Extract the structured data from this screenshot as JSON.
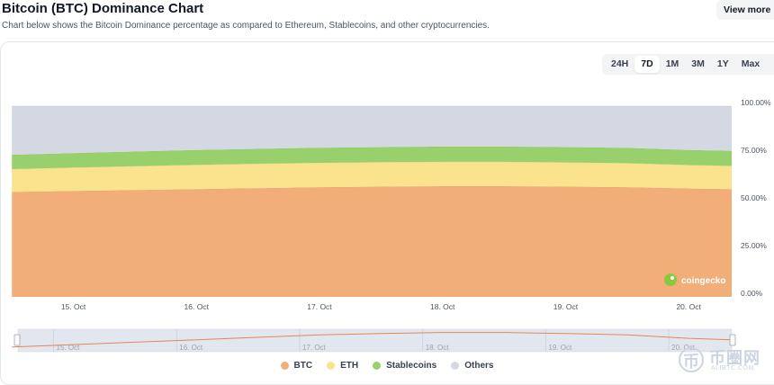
{
  "header": {
    "title": "Bitcoin (BTC) Dominance Chart",
    "subtitle": "Chart below shows the Bitcoin Dominance percentage as compared to Ethereum, Stablecoins, and other cryptocurrencies.",
    "view_more_label": "View more"
  },
  "range_tabs": [
    {
      "label": "24H",
      "active": false
    },
    {
      "label": "7D",
      "active": true
    },
    {
      "label": "1M",
      "active": false
    },
    {
      "label": "3M",
      "active": false
    },
    {
      "label": "1Y",
      "active": false
    },
    {
      "label": "Max",
      "active": false
    }
  ],
  "chart_data": {
    "type": "area",
    "stacked": true,
    "x": [
      "14.5 Oct",
      "15.0 Oct",
      "15.5 Oct",
      "16.0 Oct",
      "16.5 Oct",
      "17.0 Oct",
      "17.5 Oct",
      "18.0 Oct",
      "18.5 Oct",
      "19.0 Oct",
      "19.5 Oct",
      "20.0 Oct",
      "20.35 Oct"
    ],
    "x_days": [
      14.5,
      15.0,
      15.5,
      16.0,
      16.5,
      17.0,
      17.5,
      18.0,
      18.5,
      19.0,
      19.5,
      20.0,
      20.35
    ],
    "x_tick_labels": [
      "15. Oct",
      "16. Oct",
      "17. Oct",
      "18. Oct",
      "19. Oct",
      "20. Oct"
    ],
    "x_tick_days": [
      15,
      16,
      17,
      18,
      19,
      20
    ],
    "y_tick_labels": [
      "100.00%",
      "75.00%",
      "50.00%",
      "25.00%",
      "0.00%"
    ],
    "y_ticks": [
      100,
      75,
      50,
      25,
      0
    ],
    "ylim": [
      0,
      100
    ],
    "series": [
      {
        "name": "BTC",
        "color": "#f2ae79",
        "values": [
          55.0,
          55.5,
          56.0,
          56.5,
          57.0,
          57.5,
          57.8,
          58.0,
          58.0,
          57.8,
          57.5,
          56.8,
          56.5
        ]
      },
      {
        "name": "ETH",
        "color": "#fbe38e",
        "values": [
          12.0,
          12.3,
          12.5,
          12.7,
          12.8,
          12.8,
          12.8,
          12.8,
          12.8,
          12.7,
          12.6,
          12.3,
          12.2
        ]
      },
      {
        "name": "Stablecoins",
        "color": "#98d16b",
        "values": [
          7.5,
          7.6,
          7.7,
          7.8,
          7.8,
          7.9,
          7.9,
          8.0,
          8.0,
          8.0,
          8.0,
          7.9,
          7.8
        ]
      },
      {
        "name": "Others",
        "color": "#d3d8e3",
        "values": [
          25.5,
          24.6,
          23.8,
          23.0,
          22.4,
          21.8,
          21.5,
          21.2,
          21.2,
          21.5,
          21.9,
          23.0,
          23.5
        ]
      }
    ],
    "navigator": {
      "tick_labels": [
        "15. Oct",
        "16. Oct",
        "17. Oct",
        "18. Oct",
        "19. Oct",
        "20. Oct"
      ]
    },
    "grid": false,
    "legend_position": "bottom-center"
  },
  "chart_watermark": "coingecko",
  "site_watermark": {
    "mark": "币",
    "text": "币圈网",
    "sub": "ALIBTC.COM"
  }
}
